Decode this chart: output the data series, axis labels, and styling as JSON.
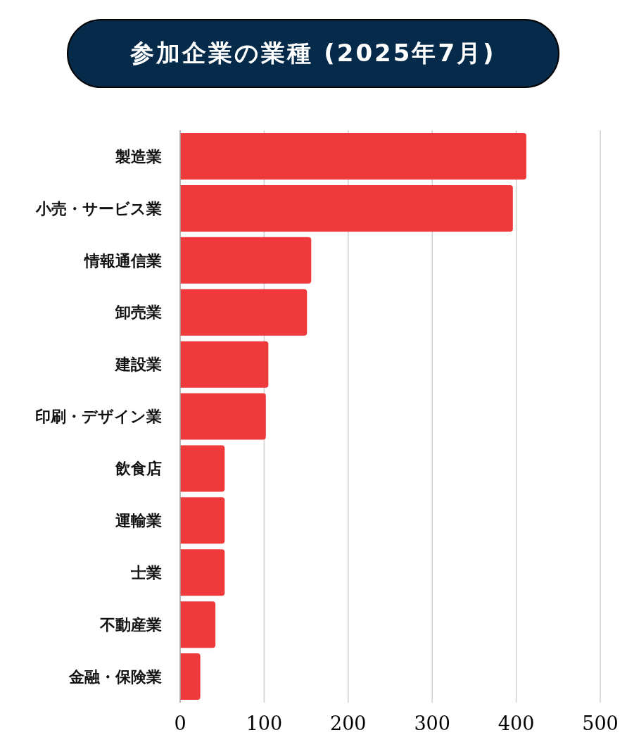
{
  "chart_data": {
    "type": "bar",
    "orientation": "horizontal",
    "title": "参加企業の業種 (2025年7月)",
    "categories": [
      "製造業",
      "小売・サービス業",
      "情報通信業",
      "卸売業",
      "建設業",
      "印刷・デザイン業",
      "飲食店",
      "運輸業",
      "士業",
      "不動産業",
      "金融・保険業"
    ],
    "values": [
      412,
      396,
      156,
      151,
      105,
      102,
      53,
      53,
      53,
      42,
      24
    ],
    "color": "#ef3a3c",
    "xlim": [
      0,
      500
    ],
    "xticks": [
      0,
      100,
      200,
      300,
      400,
      500
    ],
    "grid": "x"
  }
}
